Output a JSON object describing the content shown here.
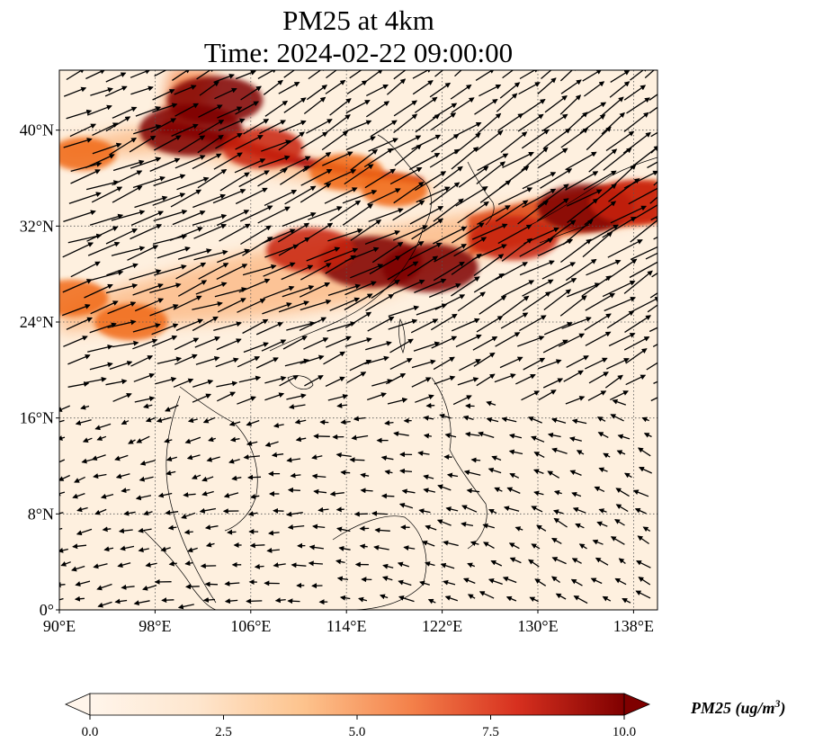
{
  "title": {
    "line1": "PM25 at 4km",
    "line2": "Time: 2024-02-22 09:00:00"
  },
  "map": {
    "lon_range": [
      90,
      140
    ],
    "lat_range": [
      0,
      45
    ],
    "lon_ticks": [
      {
        "value": 90,
        "label": "90°E"
      },
      {
        "value": 98,
        "label": "98°E"
      },
      {
        "value": 106,
        "label": "106°E"
      },
      {
        "value": 114,
        "label": "114°E"
      },
      {
        "value": 122,
        "label": "122°E"
      },
      {
        "value": 130,
        "label": "130°E"
      },
      {
        "value": 138,
        "label": "138°E"
      }
    ],
    "lat_ticks": [
      {
        "value": 0,
        "label": "0°"
      },
      {
        "value": 8,
        "label": "8°N"
      },
      {
        "value": 16,
        "label": "16°N"
      },
      {
        "value": 24,
        "label": "24°N"
      },
      {
        "value": 32,
        "label": "32°N"
      },
      {
        "value": 40,
        "label": "40°N"
      }
    ],
    "gridlines": "dotted",
    "colormap": [
      "#fff5eb",
      "#fdd8b0",
      "#fdae6b",
      "#f16913",
      "#c8210d",
      "#7f0000"
    ],
    "pm25_hotspots": [
      {
        "lon": 116,
        "lat": 29,
        "value": 10
      },
      {
        "lon": 121,
        "lat": 28.5,
        "value": 9
      },
      {
        "lon": 111,
        "lat": 30,
        "value": 8
      },
      {
        "lon": 128,
        "lat": 31,
        "value": 8
      },
      {
        "lon": 134,
        "lat": 33.5,
        "value": 9
      },
      {
        "lon": 138,
        "lat": 34,
        "value": 8
      },
      {
        "lon": 101,
        "lat": 40,
        "value": 10
      },
      {
        "lon": 103,
        "lat": 42.5,
        "value": 9
      },
      {
        "lon": 107,
        "lat": 38.5,
        "value": 7
      },
      {
        "lon": 114,
        "lat": 36.5,
        "value": 6
      },
      {
        "lon": 118,
        "lat": 35,
        "value": 5
      },
      {
        "lon": 96,
        "lat": 24,
        "value": 6
      },
      {
        "lon": 91,
        "lat": 26,
        "value": 6
      },
      {
        "lon": 92,
        "lat": 38,
        "value": 5
      }
    ]
  },
  "colorbar": {
    "min": 0,
    "max": 10,
    "ticks": [
      "0.0",
      "2.5",
      "5.0",
      "7.5",
      "10.0"
    ],
    "label": "PM25 (ug/m",
    "label_sup": "3",
    "label_close": ")"
  }
}
